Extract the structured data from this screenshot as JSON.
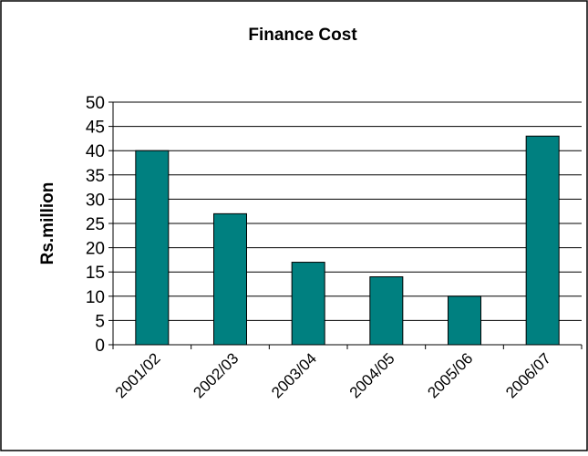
{
  "chart_data": {
    "type": "bar",
    "title": "Finance Cost",
    "xlabel": "",
    "ylabel": "Rs.million",
    "categories": [
      "2001/02",
      "2002/03",
      "2003/04",
      "2004/05",
      "2005/06",
      "2006/07"
    ],
    "values": [
      40,
      27,
      17,
      14,
      10,
      43
    ],
    "ylim": [
      0,
      50
    ],
    "yticks": [
      "0",
      "5",
      "10",
      "15",
      "20",
      "25",
      "30",
      "35",
      "40",
      "45",
      "50"
    ],
    "grid": true,
    "legend": "none",
    "bar_color": "#008080"
  }
}
